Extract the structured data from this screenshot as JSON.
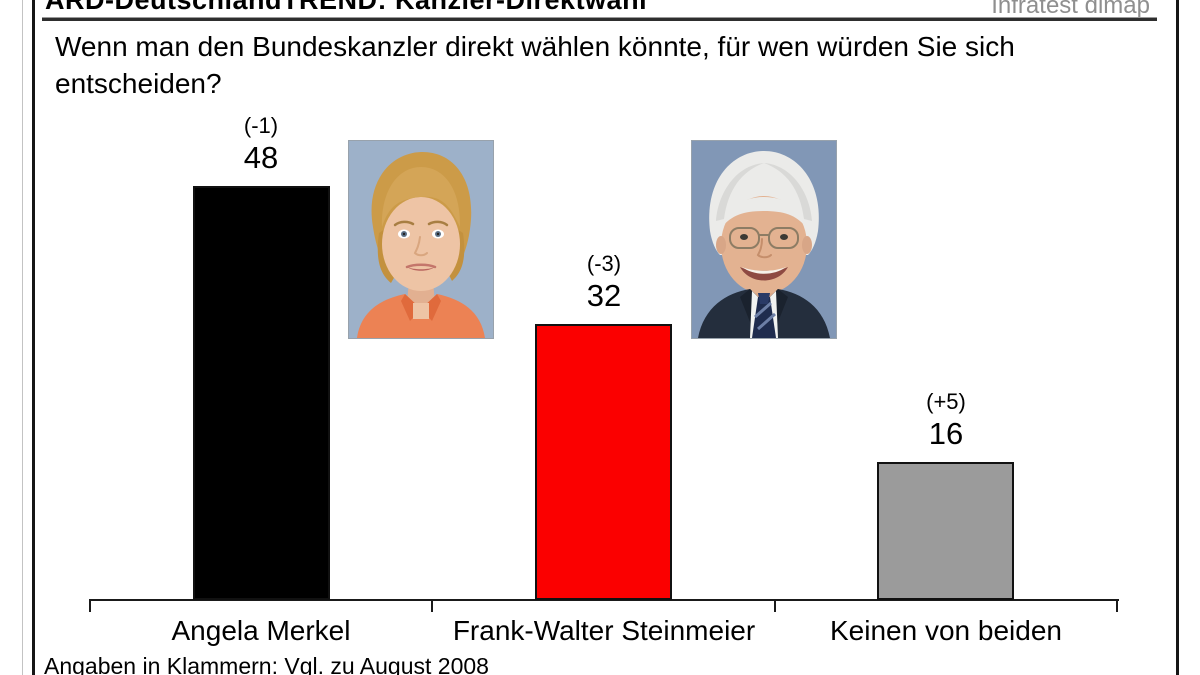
{
  "header": {
    "title": "ARD-DeutschlandTREND: Kanzler-Direktwahl",
    "source": "Infratest dimap"
  },
  "question": "Wenn man den Bundeskanzler direkt wählen könnte, für wen würden Sie sich entscheiden?",
  "footnote": "Angaben in Klammern: Vgl. zu August 2008",
  "photos": [
    {
      "person": "Angela Merkel"
    },
    {
      "person": "Frank-Walter Steinmeier"
    }
  ],
  "chart_data": {
    "type": "bar",
    "categories": [
      "Angela Merkel",
      "Frank-Walter Steinmeier",
      "Keinen von beiden"
    ],
    "values": [
      48,
      32,
      16
    ],
    "change_labels": [
      "(-1)",
      "(-3)",
      "(+5)"
    ],
    "bar_colors": [
      "#000000",
      "#fb0000",
      "#9b9b9b"
    ],
    "ylim": [
      0,
      50
    ],
    "grid": false,
    "legend": false,
    "xlabel": "",
    "ylabel": ""
  }
}
